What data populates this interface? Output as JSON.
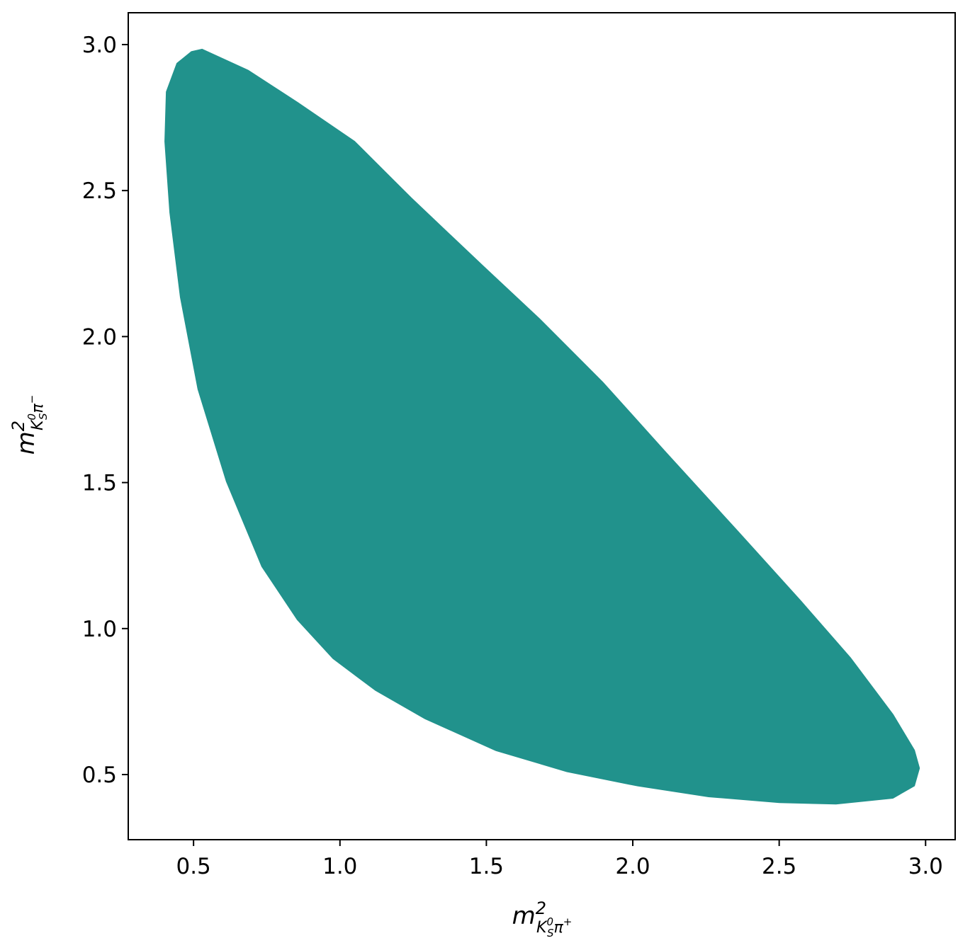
{
  "chart_data": {
    "type": "fill",
    "color": "#21928c",
    "xlabel": {
      "symbol": "m",
      "power": "2",
      "particle": "K",
      "particle_sup": "0",
      "particle_sub": "S",
      "pion": "π",
      "charge": "+"
    },
    "ylabel": {
      "symbol": "m",
      "power": "2",
      "particle": "K",
      "particle_sup": "0",
      "particle_sub": "S",
      "pion": "π",
      "charge": "−"
    },
    "x": [
      0.529,
      0.686,
      0.855,
      1.049,
      1.243,
      1.485,
      1.679,
      1.897,
      2.114,
      2.356,
      2.574,
      2.743,
      2.888,
      2.961,
      2.978,
      2.961,
      2.888,
      2.694,
      2.501,
      2.259,
      2.017,
      1.775,
      1.533,
      1.291,
      1.122,
      0.977,
      0.855,
      0.734,
      0.613,
      0.516,
      0.456,
      0.42,
      0.403,
      0.408,
      0.444,
      0.493
    ],
    "y": [
      2.983,
      2.911,
      2.801,
      2.668,
      2.474,
      2.244,
      2.062,
      1.843,
      1.601,
      1.335,
      1.093,
      0.899,
      0.705,
      0.583,
      0.522,
      0.462,
      0.42,
      0.4,
      0.405,
      0.425,
      0.462,
      0.511,
      0.583,
      0.692,
      0.789,
      0.898,
      1.031,
      1.213,
      1.504,
      1.82,
      2.135,
      2.425,
      2.668,
      2.838,
      2.935,
      2.975
    ],
    "xlim": [
      0.277,
      3.101
    ],
    "ylim": [
      0.277,
      3.109
    ],
    "xticks": [
      0.5,
      {
        "value": 1,
        "label": "1.0"
      },
      1.5,
      {
        "value": 2,
        "label": "2.0"
      },
      2.5,
      {
        "value": 3,
        "label": "3.0"
      }
    ],
    "yticks": [
      0.5,
      {
        "value": 1,
        "label": "1.0"
      },
      1.5,
      {
        "value": 2,
        "label": "2.0"
      },
      2.5,
      {
        "value": 3,
        "label": "3.0"
      }
    ]
  }
}
